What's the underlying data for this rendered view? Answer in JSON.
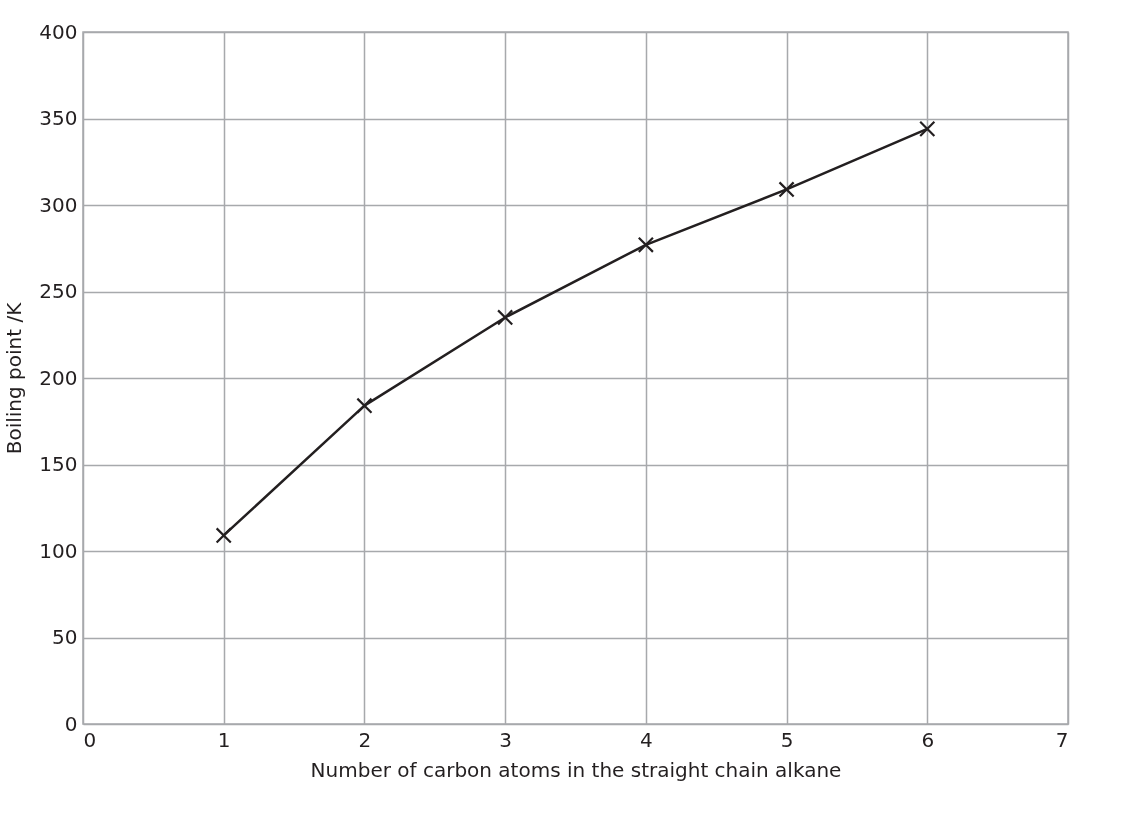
{
  "chart_data": {
    "type": "line",
    "xlabel": "Number of carbon atoms in the straight chain alkane",
    "ylabel": "Boiling point /K",
    "x": [
      1,
      2,
      3,
      4,
      5,
      6
    ],
    "series": [
      {
        "color": "#231f20",
        "values": [
          109,
          184,
          235,
          277,
          309,
          344
        ]
      }
    ],
    "xlim": [
      0,
      7
    ],
    "xticks": [
      0,
      1,
      2,
      3,
      4,
      5,
      6,
      7
    ],
    "ylim": [
      0,
      400
    ],
    "yticks": [
      0,
      50,
      100,
      150,
      200,
      250,
      300,
      350,
      400
    ],
    "grid": true,
    "marker": "cross",
    "line_style": "solid"
  }
}
